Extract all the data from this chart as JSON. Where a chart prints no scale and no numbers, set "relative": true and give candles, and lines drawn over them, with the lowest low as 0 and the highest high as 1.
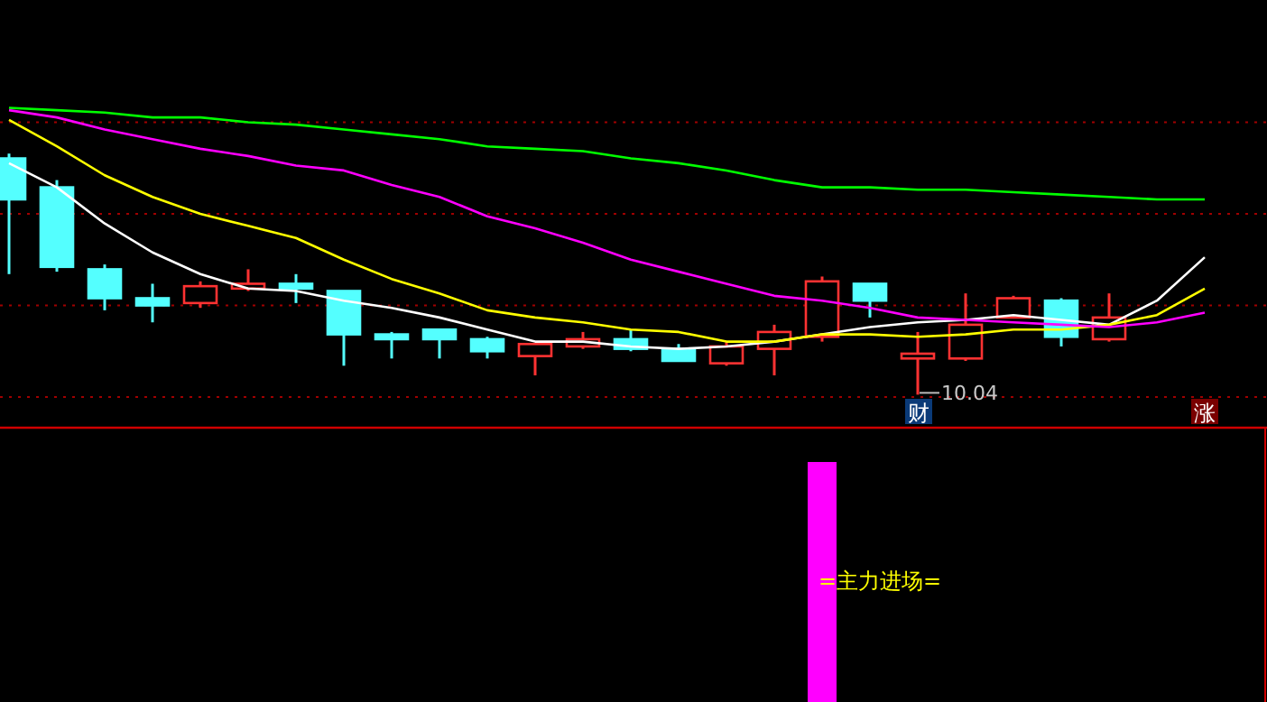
{
  "chart_data": [
    {
      "type": "candlestick",
      "relative": true,
      "ref_lines": [
        {
          "axis": "y",
          "value": 1.13,
          "color": "#a00000",
          "line_style": "dotted"
        },
        {
          "axis": "y",
          "value": 0.75,
          "color": "#a00000",
          "line_style": "dotted"
        },
        {
          "axis": "y",
          "value": 0.37,
          "color": "#a00000",
          "line_style": "dotted"
        },
        {
          "axis": "y",
          "value": -0.01,
          "color": "#a00000",
          "line_style": "dotted"
        }
      ],
      "categories": [
        null,
        null,
        null,
        null,
        null,
        null,
        null,
        null,
        null,
        null,
        null,
        null,
        null,
        null,
        null,
        null,
        null,
        null,
        null,
        null,
        null,
        null,
        null,
        null,
        null,
        null
      ],
      "ohlc": [
        [
          0.98,
          1.0,
          0.5,
          0.81
        ],
        [
          0.86,
          0.89,
          0.51,
          0.53
        ],
        [
          0.52,
          0.54,
          0.35,
          0.4
        ],
        [
          0.4,
          0.46,
          0.3,
          0.37
        ],
        [
          0.38,
          0.47,
          0.36,
          0.45
        ],
        [
          0.44,
          0.52,
          0.43,
          0.46
        ],
        [
          0.46,
          0.5,
          0.38,
          0.44
        ],
        [
          0.43,
          0.43,
          0.12,
          0.25
        ],
        [
          0.25,
          0.26,
          0.15,
          0.23
        ],
        [
          0.27,
          0.27,
          0.15,
          0.23
        ],
        [
          0.23,
          0.24,
          0.15,
          0.18
        ],
        [
          0.16,
          0.21,
          0.08,
          0.21
        ],
        [
          0.2,
          0.26,
          0.19,
          0.23
        ],
        [
          0.23,
          0.27,
          0.18,
          0.19
        ],
        [
          0.19,
          0.21,
          0.14,
          0.14
        ],
        [
          0.13,
          0.22,
          0.12,
          0.2
        ],
        [
          0.19,
          0.29,
          0.08,
          0.26
        ],
        [
          0.24,
          0.49,
          0.22,
          0.47
        ],
        [
          0.46,
          0.46,
          0.32,
          0.39
        ],
        [
          0.15,
          0.26,
          0.0,
          0.17
        ],
        [
          0.15,
          0.42,
          0.14,
          0.29
        ],
        [
          0.32,
          0.41,
          0.32,
          0.4
        ],
        [
          0.39,
          0.4,
          0.2,
          0.24
        ],
        [
          0.23,
          0.42,
          0.22,
          0.32
        ],
        null,
        null
      ],
      "colors": [
        "#54ffff",
        "#54ffff",
        "#54ffff",
        "#54ffff",
        "#ff3232",
        "#ff3232",
        "#54ffff",
        "#54ffff",
        "#54ffff",
        "#54ffff",
        "#54ffff",
        "#ff3232",
        "#ff3232",
        "#54ffff",
        "#54ffff",
        "#ff3232",
        "#ff3232",
        "#ff3232",
        "#54ffff",
        "#ff3232",
        "#ff3232",
        "#ff3232",
        "#54ffff",
        "#ff3232",
        null,
        null
      ],
      "series": [
        {
          "type": "line",
          "color": "#ffffff",
          "values": [
            0.96,
            0.86,
            0.71,
            0.59,
            0.5,
            0.44,
            0.43,
            0.39,
            0.36,
            0.32,
            0.27,
            0.22,
            0.22,
            0.2,
            0.19,
            0.2,
            0.22,
            0.25,
            0.28,
            0.3,
            0.31,
            0.33,
            0.31,
            0.29,
            0.39,
            0.57
          ]
        },
        {
          "type": "line",
          "color": "#ffff00",
          "values": [
            1.14,
            1.03,
            0.91,
            0.82,
            0.75,
            0.7,
            0.65,
            0.56,
            0.48,
            0.42,
            0.35,
            0.32,
            0.3,
            0.27,
            0.26,
            0.22,
            0.22,
            0.25,
            0.25,
            0.24,
            0.25,
            0.27,
            0.27,
            0.29,
            0.33,
            0.44
          ]
        },
        {
          "type": "line",
          "color": "#ff00ff",
          "values": [
            1.18,
            1.15,
            1.1,
            1.06,
            1.02,
            0.99,
            0.95,
            0.93,
            0.87,
            0.82,
            0.74,
            0.69,
            0.63,
            0.56,
            0.51,
            0.46,
            0.41,
            0.39,
            0.36,
            0.32,
            0.31,
            0.3,
            0.29,
            0.28,
            0.3,
            0.34
          ]
        },
        {
          "type": "line",
          "color": "#00ff00",
          "values": [
            1.19,
            1.18,
            1.17,
            1.15,
            1.15,
            1.13,
            1.12,
            1.1,
            1.08,
            1.06,
            1.03,
            1.02,
            1.01,
            0.98,
            0.96,
            0.93,
            0.89,
            0.86,
            0.86,
            0.85,
            0.85,
            0.84,
            0.83,
            0.82,
            0.81,
            0.81
          ]
        }
      ],
      "annotations": [
        "10.04",
        "财",
        "涨"
      ]
    },
    {
      "type": "other",
      "annotations": [
        "=主力进场="
      ]
    }
  ]
}
